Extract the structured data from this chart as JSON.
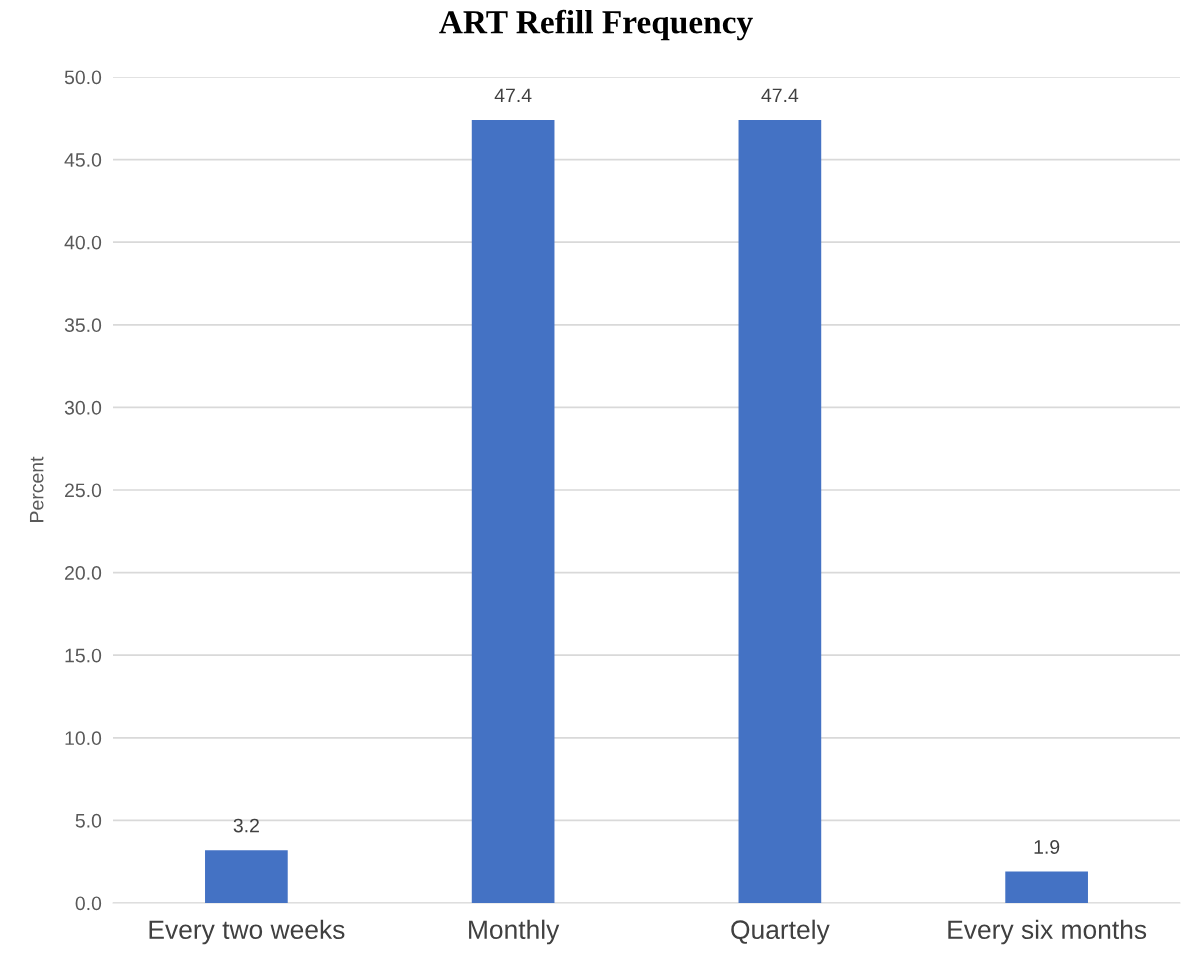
{
  "chart_data": {
    "type": "bar",
    "title": "ART Refill Frequency",
    "ylabel": "Percent",
    "categories": [
      "Every two weeks",
      "Monthly",
      "Quartely",
      "Every six months"
    ],
    "values": [
      3.2,
      47.4,
      47.4,
      1.9
    ],
    "color": "#4472c4",
    "ylim": [
      0,
      50
    ],
    "yticks": [
      {
        "value": 0,
        "label": "0.0"
      },
      {
        "value": 5,
        "label": "5.0"
      },
      {
        "value": 10,
        "label": "10.0"
      },
      {
        "value": 15,
        "label": "15.0"
      },
      {
        "value": 20,
        "label": "20.0"
      },
      {
        "value": 25,
        "label": "25.0"
      },
      {
        "value": 30,
        "label": "30.0"
      },
      {
        "value": 35,
        "label": "35.0"
      },
      {
        "value": 40,
        "label": "40.0"
      },
      {
        "value": 45,
        "label": "45.0"
      },
      {
        "value": 50,
        "label": "50.0"
      }
    ],
    "grid": "y",
    "data_labels": true,
    "legend": false
  }
}
